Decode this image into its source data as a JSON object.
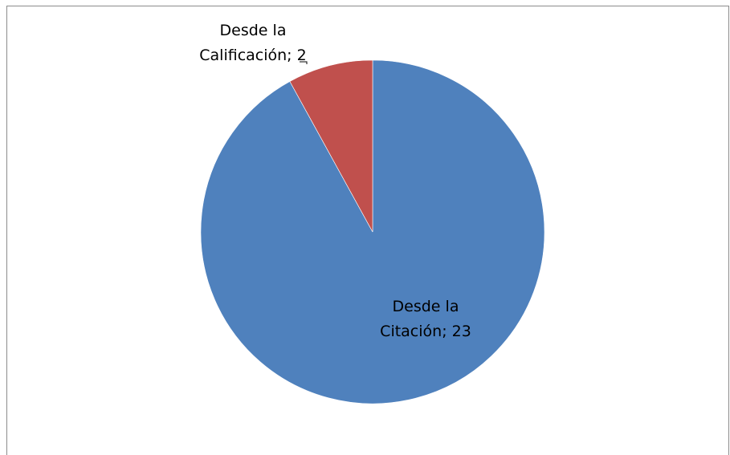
{
  "chart_data": {
    "type": "pie",
    "title": "",
    "categories": [
      "Desde la Citación",
      "Desde la Calificación"
    ],
    "values": [
      23,
      2
    ],
    "colors": [
      "#4f81bd",
      "#c0504d"
    ],
    "start_angle_deg": 0,
    "direction": "clockwise",
    "labels": [
      {
        "lines": [
          "Desde la",
          "Citación; 23"
        ]
      },
      {
        "lines": [
          "Desde la",
          "Calificación; 2"
        ]
      }
    ],
    "legend": "none"
  }
}
